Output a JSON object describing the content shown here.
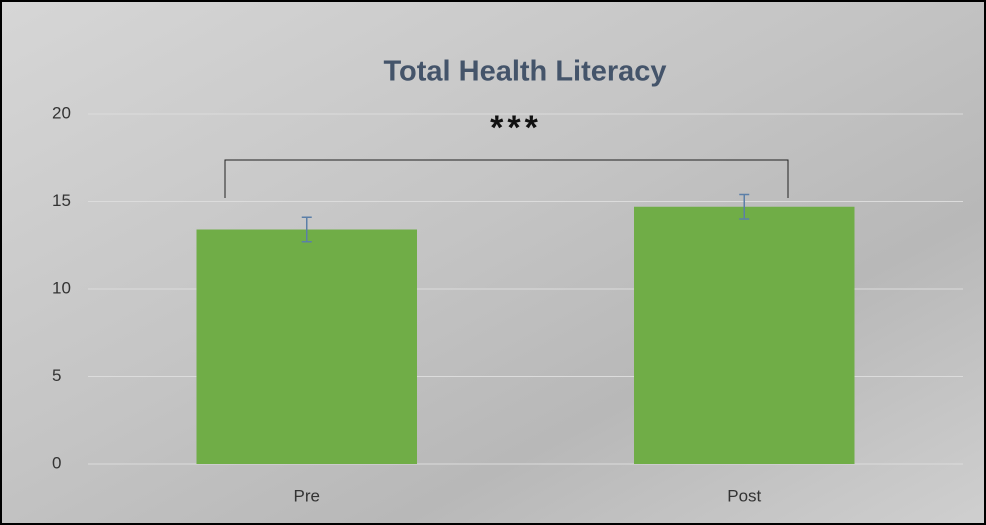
{
  "chart_data": {
    "type": "bar",
    "title": "Total Health Literacy",
    "categories": [
      "Pre",
      "Post"
    ],
    "values": [
      13.4,
      14.7
    ],
    "errors": [
      0.7,
      0.7
    ],
    "color": "#70ad47",
    "error_color": "#5b7fa8",
    "ylim": [
      0,
      20
    ],
    "yticks": [
      0,
      5,
      10,
      15,
      20
    ],
    "grid": true,
    "annotation": "***"
  }
}
